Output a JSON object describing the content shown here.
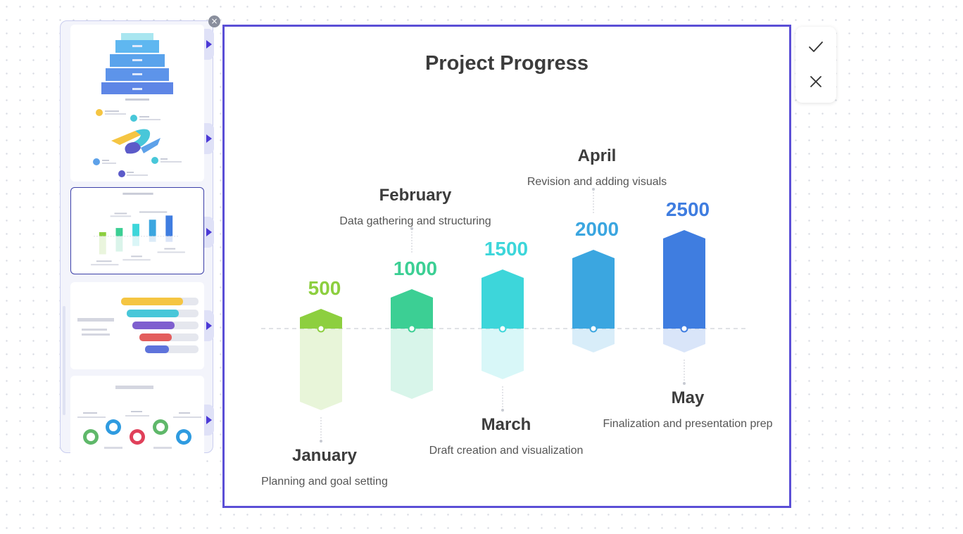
{
  "panel": {
    "close_label": "×",
    "thumbnails": [
      {
        "name": "pyramid-template"
      },
      {
        "name": "puzzle-template"
      },
      {
        "name": "project-progress-template",
        "selected": true
      },
      {
        "name": "bar-steps-template"
      },
      {
        "name": "circle-icons-template"
      }
    ]
  },
  "actions": {
    "confirm_icon": "check-icon",
    "cancel_icon": "close-icon"
  },
  "canvas": {
    "title": "Project Progress"
  },
  "colors": {
    "canvas_border": "#5b4fd6",
    "january": "#8dcf3f",
    "february": "#3ccf94",
    "march": "#3dd6da",
    "april": "#3ba6e0",
    "may": "#3f7de0"
  },
  "chart_data": {
    "type": "bar",
    "title": "Project Progress",
    "categories": [
      "January",
      "February",
      "March",
      "April",
      "May"
    ],
    "values": [
      500,
      1000,
      1500,
      2000,
      2500
    ],
    "value_labels": [
      "500",
      "1000",
      "1500",
      "2000",
      "2500"
    ],
    "descriptions": [
      "Planning and goal setting",
      "Data gathering and structuring",
      "Draft creation and visualization",
      "Revision and adding visuals",
      "Finalization and presentation prep"
    ],
    "colors": [
      "#8dcf3f",
      "#3ccf94",
      "#3dd6da",
      "#3ba6e0",
      "#3f7de0"
    ],
    "label_positions": [
      "below",
      "above",
      "below",
      "above",
      "below"
    ],
    "ylim": [
      0,
      2500
    ],
    "grid": false
  }
}
